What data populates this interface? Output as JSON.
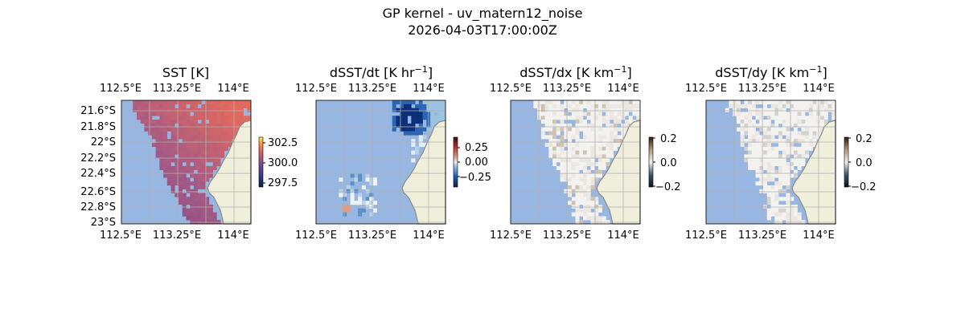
{
  "figure": {
    "title_line1": "GP kernel - uv_matern12_noise",
    "title_line2": "2026-04-03T17:00:00Z"
  },
  "map_extent": {
    "lon": [
      112.5,
      114.25
    ],
    "lat": [
      -23.05,
      -21.45
    ]
  },
  "panels": [
    {
      "id": "sst",
      "title": "SST [K]",
      "title_has_superscript": false,
      "colormap": "thermal",
      "show_lat_labels": true,
      "lat_labels": [
        "21.6°S",
        "21.8°S",
        "22°S",
        "22.2°S",
        "22.4°S",
        "22.6°S",
        "22.8°S",
        "23°S"
      ],
      "lon_labels": [
        "112.5°E",
        "113.25°E",
        "114°E"
      ],
      "colorbar": {
        "ticks": [
          "302.5",
          "300.0",
          "297.5"
        ]
      }
    },
    {
      "id": "dsst_dt",
      "title": "dSST/dt [K hr",
      "title_sup": "−1",
      "title_end": "]",
      "title_has_superscript": true,
      "colormap": "balance",
      "show_lat_labels": false,
      "lon_labels": [
        "112.5°E",
        "113.25°E",
        "114°E"
      ],
      "colorbar": {
        "ticks": [
          "0.25",
          "0.00",
          "−0.25"
        ]
      }
    },
    {
      "id": "dsst_dx",
      "title": "dSST/dx [K km",
      "title_sup": "−1",
      "title_end": "]",
      "title_has_superscript": true,
      "colormap": "diff",
      "show_lat_labels": false,
      "lon_labels": [
        "112.5°E",
        "113.25°E",
        "114°E"
      ],
      "colorbar": {
        "ticks": [
          "0.2",
          "0.0",
          "−0.2"
        ]
      }
    },
    {
      "id": "dsst_dy",
      "title": "dSST/dy [K km",
      "title_sup": "−1",
      "title_end": "]",
      "title_has_superscript": true,
      "colormap": "diff",
      "show_lat_labels": false,
      "lon_labels": [
        "112.5°E",
        "113.25°E",
        "114°E"
      ],
      "colorbar": {
        "ticks": [
          "0.2",
          "0.0",
          "−0.2"
        ]
      }
    }
  ],
  "colors": {
    "ocean": "#97b6e1",
    "land": "#efefdb",
    "coastline": "#8a8a8a",
    "gridline": "#b0b0b0"
  }
}
